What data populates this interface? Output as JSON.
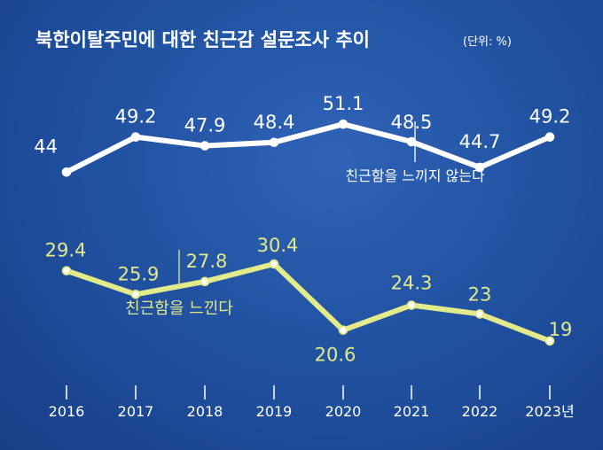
{
  "chart_data": {
    "type": "line",
    "title": "북한이탈주민에 대한 친근감 설문조사 추이",
    "unit": "(단위: %)",
    "categories": [
      "2016",
      "2017",
      "2018",
      "2019",
      "2020",
      "2021",
      "2022",
      "2023년"
    ],
    "series": [
      {
        "name": "친근함을 느끼지 않는다",
        "values": [
          44,
          49.2,
          47.9,
          48.4,
          51.1,
          48.5,
          44.7,
          49.2
        ],
        "labels": [
          "44",
          "49.2",
          "47.9",
          "48.4",
          "51.1",
          "48.5",
          "44.7",
          "49.2"
        ],
        "color": "#ffffff"
      },
      {
        "name": "친근함을 느낀다",
        "values": [
          29.4,
          25.9,
          27.8,
          30.4,
          20.6,
          24.3,
          23,
          19
        ],
        "labels": [
          "29.4",
          "25.9",
          "27.8",
          "30.4",
          "20.6",
          "24.3",
          "23",
          "19"
        ],
        "color": "#e3ea8a"
      }
    ],
    "background_color": "#1f4f9e",
    "grid": false,
    "legend": "inline annotations"
  }
}
